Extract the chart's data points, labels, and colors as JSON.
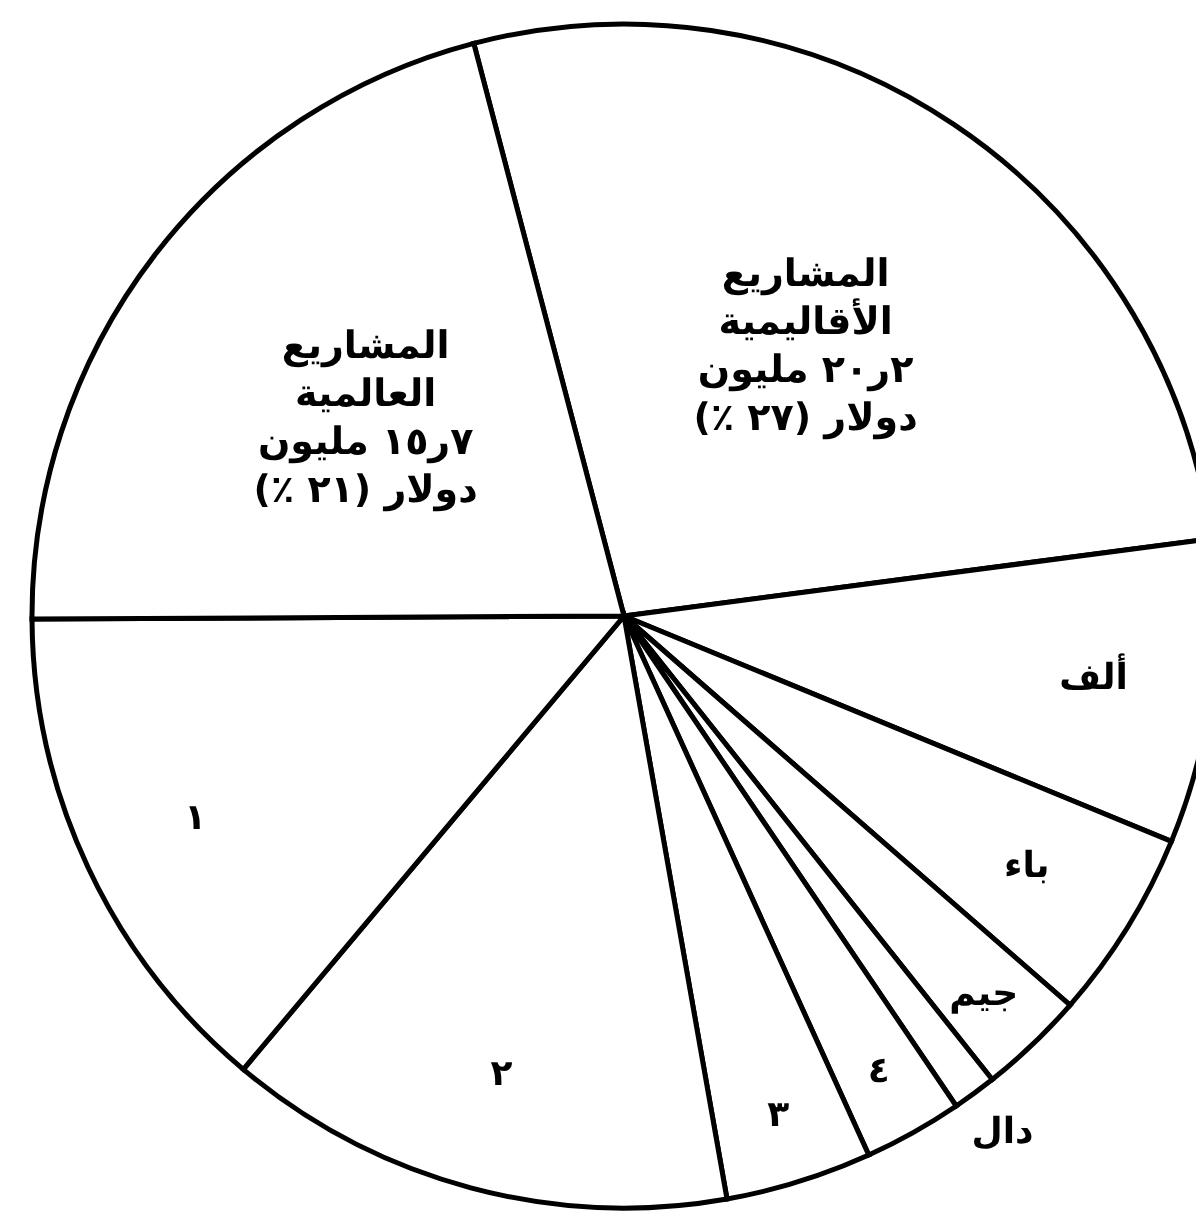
{
  "chart_data": {
    "type": "pie",
    "categories": [
      "المشاريع\nالأقاليمية\n٢ر٢٠ مليون\nدولار (٢٧ ٪)",
      "ألف",
      "باء",
      "جيم",
      "دال",
      "٤",
      "٣",
      "٢",
      "١",
      "المشاريع\nالعالمية\n٧ر١٥ مليون\nدولار (٢١ ٪)"
    ],
    "values": [
      27,
      8.3,
      5.2,
      2.9,
      1.2,
      2.7,
      4.0,
      13.9,
      13.8,
      21
    ],
    "colors": [
      "#ffffff",
      "#ffffff",
      "#ffffff",
      "#ffffff",
      "#ffffff",
      "#ffffff",
      "#ffffff",
      "#ffffff",
      "#ffffff",
      "#ffffff"
    ],
    "legend": false
  }
}
